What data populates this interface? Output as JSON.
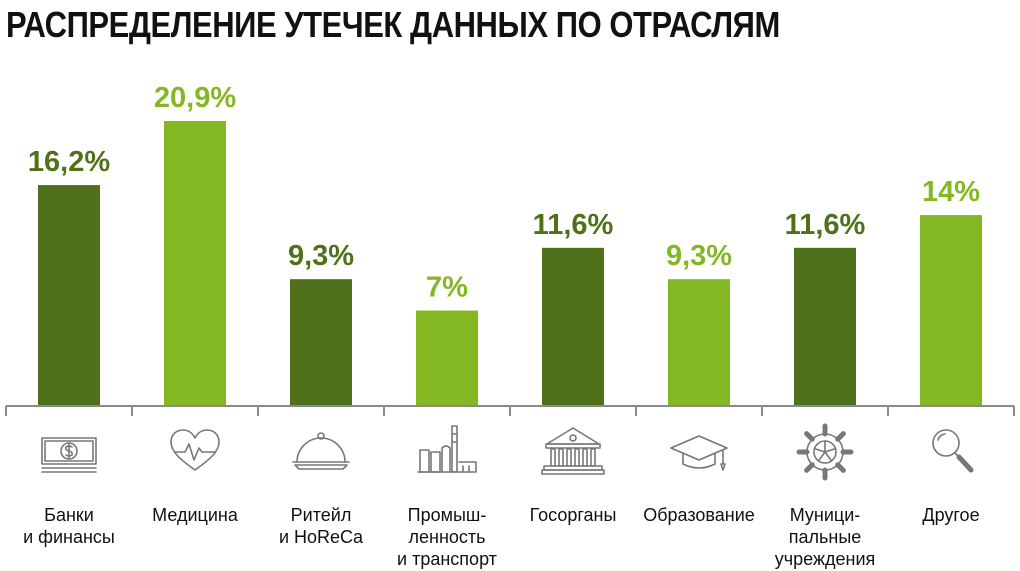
{
  "title": "РАСПРЕДЕЛЕНИЕ УТЕЧЕК ДАННЫХ ПО ОТРАСЛЯМ",
  "colors": {
    "dark": "#4e7119",
    "light": "#83b823",
    "axis": "#8a8a8a",
    "icon": "#777777"
  },
  "chart_data": {
    "type": "bar",
    "title": "РАСПРЕДЕЛЕНИЕ УТЕЧЕК ДАННЫХ ПО ОТРАСЛЯМ",
    "categories": [
      "Банки и финансы",
      "Медицина",
      "Ритейл и HoReCa",
      "Промышленность и транспорт",
      "Госорганы",
      "Образование",
      "Муниципальные учреждения",
      "Другое"
    ],
    "category_lines": [
      [
        "Банки",
        "и финансы"
      ],
      [
        "Медицина"
      ],
      [
        "Ритейл",
        "и HoReCa"
      ],
      [
        "Промыш-",
        "ленность",
        "и транспорт"
      ],
      [
        "Госорганы"
      ],
      [
        "Образование"
      ],
      [
        "Муници-",
        "пальные",
        "учреждения"
      ],
      [
        "Другое"
      ]
    ],
    "values": [
      16.2,
      20.9,
      9.3,
      7,
      11.6,
      9.3,
      11.6,
      14
    ],
    "value_labels": [
      "16,2%",
      "20,9%",
      "9,3%",
      "7%",
      "11,6%",
      "9,3%",
      "11,6%",
      "14%"
    ],
    "bar_shades": [
      "dark",
      "light",
      "dark",
      "light",
      "dark",
      "light",
      "dark",
      "light"
    ],
    "icons": [
      "money-icon",
      "heart-pulse-icon",
      "cloche-icon",
      "factory-icon",
      "government-building-icon",
      "graduation-cap-icon",
      "gear-icon",
      "magnifier-icon"
    ],
    "ylim": [
      0,
      22
    ],
    "grid": false,
    "xlabel": "",
    "ylabel": ""
  }
}
